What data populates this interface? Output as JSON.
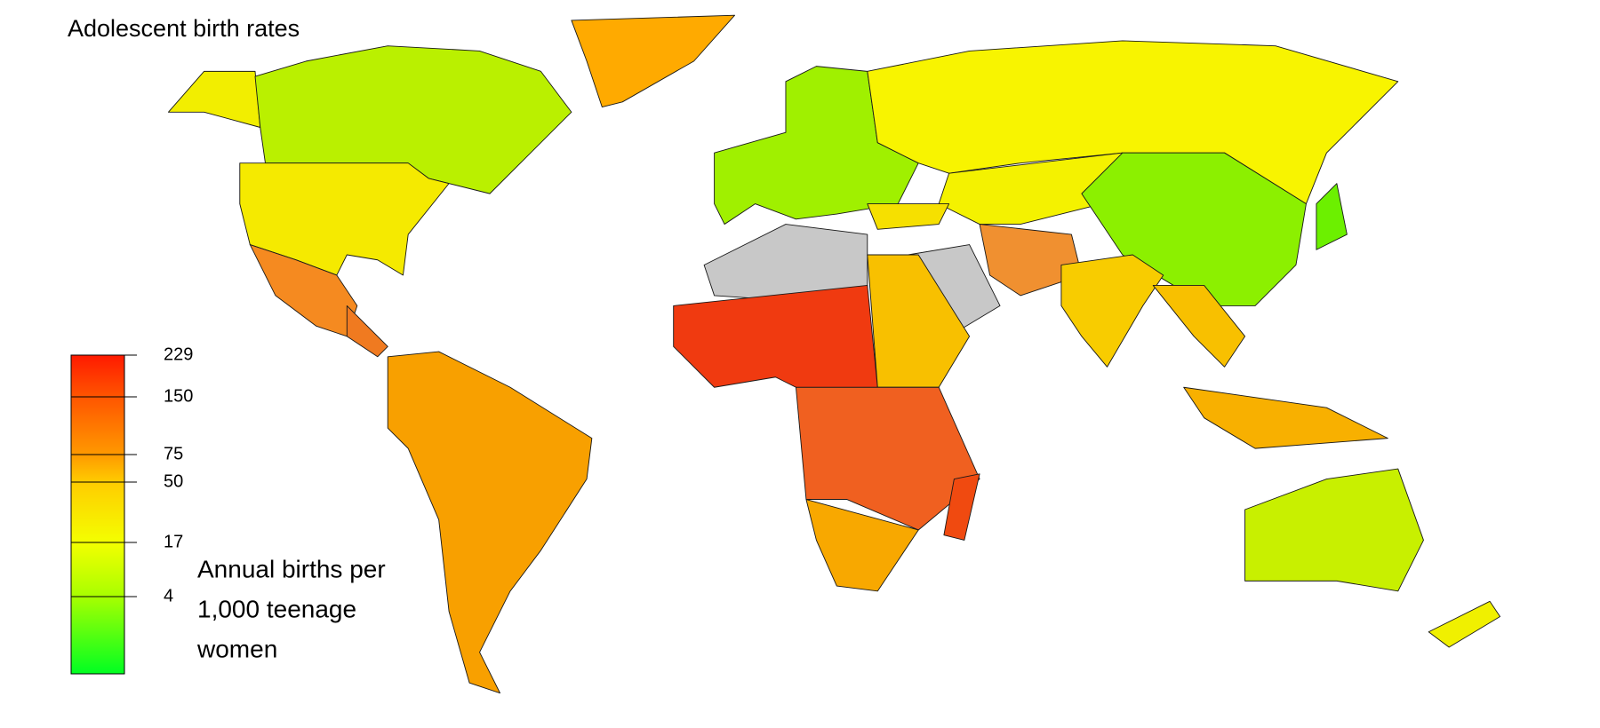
{
  "title": "Adolescent birth rates",
  "legend": {
    "ticks": [
      229,
      150,
      75,
      50,
      17,
      4
    ],
    "colors": [
      "#ff1a00",
      "#ff5500",
      "#ff9900",
      "#ffcc00",
      "#f4ff00",
      "#a8ff00",
      "#00ff22"
    ],
    "caption": [
      "Annual births per",
      "1,000 teenage",
      "women"
    ]
  }
}
